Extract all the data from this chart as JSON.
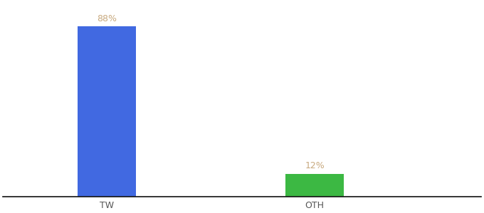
{
  "categories": [
    "TW",
    "OTH"
  ],
  "values": [
    88,
    12
  ],
  "bar_colors": [
    "#4169e1",
    "#3cb843"
  ],
  "label_color": "#c8a97e",
  "value_labels": [
    "88%",
    "12%"
  ],
  "background_color": "#ffffff",
  "axis_line_color": "#111111",
  "tick_label_color": "#555555",
  "bar_width": 0.28,
  "ylim": [
    0,
    100
  ],
  "label_fontsize": 9,
  "tick_fontsize": 9,
  "x_positions": [
    1,
    2
  ],
  "xlim": [
    0.5,
    2.8
  ]
}
